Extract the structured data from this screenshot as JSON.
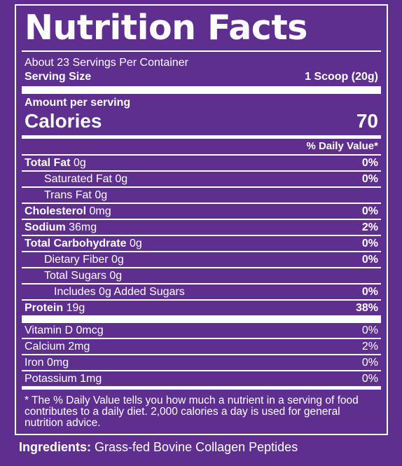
{
  "title": "Nutrition Facts",
  "servings_per_container": "About 23 Servings Per Container",
  "serving_size_label": "Serving Size",
  "serving_size_value": "1 Scoop (20g)",
  "amount_per_serving": "Amount per serving",
  "calories_label": "Calories",
  "calories_value": "70",
  "daily_value_header": "% Daily Value*",
  "nutrients": [
    {
      "name": "Total Fat",
      "amount": "0g",
      "dv": "0%"
    },
    {
      "name": "Saturated Fat",
      "amount": "0g",
      "dv": "0%"
    },
    {
      "name": "Trans Fat",
      "amount": "0g",
      "dv": ""
    },
    {
      "name": "Cholesterol",
      "amount": "0mg",
      "dv": "0%"
    },
    {
      "name": "Sodium",
      "amount": "36mg",
      "dv": "2%"
    },
    {
      "name": "Total Carbohydrate",
      "amount": "0g",
      "dv": "0%"
    },
    {
      "name": "Dietary Fiber",
      "amount": "0g",
      "dv": "0%"
    },
    {
      "name": "Total Sugars",
      "amount": "0g",
      "dv": ""
    },
    {
      "name": "Includes 0g Added Sugars",
      "amount": "",
      "dv": "0%"
    },
    {
      "name": "Protein",
      "amount": "19g",
      "dv": "38%"
    }
  ],
  "vitamins": [
    {
      "name": "Vitamin D 0mcg",
      "dv": "0%"
    },
    {
      "name": "Calcium 2mg",
      "dv": "2%"
    },
    {
      "name": "Iron 0mg",
      "dv": "0%"
    },
    {
      "name": "Potassium 1mg",
      "dv": "0%"
    }
  ],
  "footnote": "* The % Daily Value tells you how much a nutrient in a serving of food contributes to a daily diet. 2,000 calories a day is used for general nutrition advice.",
  "ingredients_label": "Ingredients:",
  "ingredients_text": "Grass-fed Bovine Collagen Peptides",
  "colors": {
    "background": "#5e2f8f",
    "text": "#ffffff"
  }
}
